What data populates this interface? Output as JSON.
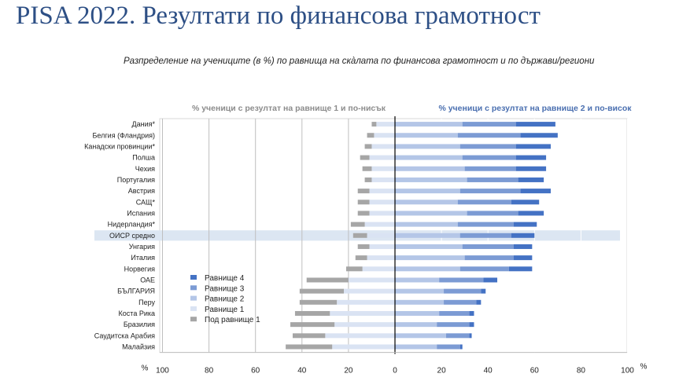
{
  "slide": {
    "title": "PISA 2022. Резултати по финансова грамотност",
    "subtitle": "Разпределение на учениците (в %) по равнища на скàлата по финансова грамотност и по държави/региони"
  },
  "chart_data": {
    "type": "bar",
    "orientation": "horizontal-diverging",
    "header_left": "% ученици с резултат на равнище 1 и по-нисък",
    "header_right": "% ученици с резултат на равнище 2 и по-висок",
    "axis_unit_label": "%",
    "xlim": [
      -100,
      100
    ],
    "xticks": [
      -100,
      -80,
      -60,
      -40,
      -20,
      0,
      20,
      40,
      60,
      80,
      100
    ],
    "xtick_labels": [
      "100",
      "80",
      "60",
      "40",
      "20",
      "0",
      "20",
      "40",
      "60",
      "80",
      "100"
    ],
    "grid": true,
    "legend_position": "left-middle",
    "highlight_category": "ОИСР средно",
    "categories": [
      "Дания*",
      "Белгия (Фландрия)",
      "Канадски провинции*",
      "Полша",
      "Чехия",
      "Португалия",
      "Австрия",
      "САЩ*",
      "Испания",
      "Нидерландия*",
      "ОИСР средно",
      "Унгария",
      "Италия",
      "Норвегия",
      "ОАЕ",
      "БЪЛГАРИЯ",
      "Перу",
      "Коста Рика",
      "Бразилия",
      "Саудитска Арабия",
      "Малайзия"
    ],
    "series": [
      {
        "name": "Равнище 4",
        "color": "#4472c4",
        "side": "right",
        "values": [
          17,
          16,
          15,
          13,
          13,
          11,
          13,
          12,
          11,
          10,
          10,
          8,
          8,
          10,
          6,
          2,
          2,
          2,
          2,
          1,
          1
        ]
      },
      {
        "name": "Равнище 3",
        "color": "#7c9bd4",
        "side": "right",
        "values": [
          23,
          27,
          24,
          23,
          22,
          22,
          26,
          23,
          22,
          24,
          22,
          22,
          21,
          21,
          19,
          16,
          14,
          13,
          14,
          10,
          10
        ]
      },
      {
        "name": "Равнище 2",
        "color": "#b4c6e7",
        "side": "right",
        "values": [
          29,
          27,
          28,
          29,
          30,
          31,
          28,
          27,
          31,
          27,
          28,
          29,
          30,
          28,
          19,
          21,
          21,
          19,
          18,
          22,
          18
        ]
      },
      {
        "name": "Равнище 1",
        "color": "#dae3f3",
        "side": "left",
        "values": [
          8,
          9,
          10,
          11,
          10,
          10,
          11,
          11,
          11,
          13,
          12,
          11,
          12,
          14,
          20,
          22,
          25,
          28,
          26,
          30,
          27
        ]
      },
      {
        "name": "Под равнище 1",
        "color": "#a6a6a6",
        "side": "left",
        "values": [
          2,
          3,
          3,
          4,
          4,
          3,
          5,
          5,
          5,
          6,
          6,
          5,
          5,
          7,
          18,
          19,
          16,
          15,
          19,
          14,
          20
        ]
      }
    ],
    "legend_order": [
      "Равнище 4",
      "Равнище 3",
      "Равнище 2",
      "Равнище 1",
      "Под равнище 1"
    ]
  }
}
